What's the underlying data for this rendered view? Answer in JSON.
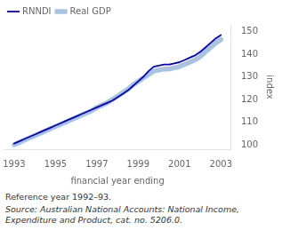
{
  "chart_data": {
    "type": "line",
    "xlabel": "financial year ending",
    "ylabel": "index",
    "annotations": [
      "Reference year 1992–93.",
      "Source: Australian National Accounts: National Income,\nExpenditure and Product, cat. no. 5206.0."
    ],
    "x": [
      1993,
      1993.25,
      1993.5,
      1993.75,
      1994,
      1994.25,
      1994.5,
      1994.75,
      1995,
      1995.25,
      1995.5,
      1995.75,
      1996,
      1996.25,
      1996.5,
      1996.75,
      1997,
      1997.25,
      1997.5,
      1997.75,
      1998,
      1998.25,
      1998.5,
      1998.75,
      1999,
      1999.25,
      1999.5,
      1999.75,
      2000,
      2000.25,
      2000.5,
      2000.75,
      2001,
      2001.25,
      2001.5,
      2001.75,
      2002,
      2002.25,
      2002.5,
      2002.75,
      2003
    ],
    "series": [
      {
        "name": "RNNDI",
        "color": "#0000cc",
        "values": [
          100.5,
          101.5,
          102.5,
          103.5,
          104.5,
          105.5,
          106.5,
          107.5,
          108.5,
          109.5,
          110.5,
          111.5,
          112.5,
          113.5,
          114.5,
          115.5,
          116.5,
          117.5,
          118.5,
          119.5,
          121.0,
          122.5,
          124.0,
          126.0,
          128.0,
          130.0,
          132.5,
          134.5,
          135.0,
          135.5,
          135.5,
          136.0,
          136.5,
          137.5,
          138.5,
          139.5,
          141.0,
          143.0,
          145.0,
          147.0,
          148.5
        ]
      },
      {
        "name": "Real GDP",
        "color": "#aac4e0",
        "values": [
          100.0,
          101.0,
          102.0,
          103.0,
          104.0,
          105.0,
          106.0,
          107.0,
          108.0,
          109.0,
          110.0,
          111.0,
          112.0,
          113.0,
          114.0,
          115.0,
          116.5,
          117.5,
          118.5,
          120.0,
          121.5,
          123.0,
          124.5,
          126.5,
          128.0,
          129.5,
          131.0,
          132.5,
          133.0,
          133.5,
          133.5,
          134.0,
          134.5,
          135.5,
          136.5,
          137.5,
          139.0,
          141.0,
          143.0,
          145.0,
          146.5
        ]
      }
    ],
    "xlim": [
      1992.5,
      2003.5
    ],
    "ylim": [
      98,
      153
    ],
    "xticks": [
      1993,
      1995,
      1997,
      1999,
      2001,
      2003
    ],
    "yticks": [
      100,
      110,
      120,
      130,
      140,
      150
    ],
    "legend": "upper left",
    "grid": false
  }
}
